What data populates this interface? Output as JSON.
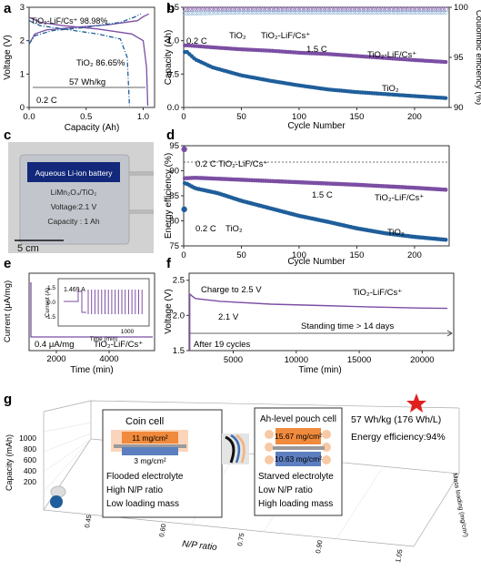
{
  "panel_labels": {
    "a": "a",
    "b": "b",
    "c": "c",
    "d": "d",
    "e": "e",
    "f": "f",
    "g": "g"
  },
  "colors": {
    "purple": "#7b4ea3",
    "blue": "#1f5e9a",
    "light_blue": "#8fb4d6",
    "pouch_orange": "#f08a3c",
    "pouch_blue": "#5d7fc0"
  },
  "chart_data": [
    {
      "id": "a",
      "type": "line",
      "xlabel": "Capacity (Ah)",
      "ylabel": "Voltage (V)",
      "xlim": [
        0,
        1.1
      ],
      "ylim": [
        0,
        3
      ],
      "xticks": [
        "0.0",
        "0.5",
        "1.0"
      ],
      "yticks": [
        "0",
        "1",
        "2",
        "3"
      ],
      "annotations": [
        "TiO₂-LiF/Cs⁺ 98.98%",
        "TiO₂ 86.65%",
        "57 Wh/kg",
        "0.2 C"
      ],
      "series": [
        {
          "name": "TiO₂-LiF/Cs⁺ charge",
          "color": "#7b4ea3",
          "x": [
            0,
            0.05,
            0.15,
            0.4,
            0.7,
            0.95,
            1.0,
            1.05
          ],
          "y": [
            1.9,
            2.2,
            2.32,
            2.4,
            2.48,
            2.6,
            2.72,
            2.8
          ]
        },
        {
          "name": "TiO₂-LiF/Cs⁺ discharge",
          "color": "#7b4ea3",
          "x": [
            0,
            0.1,
            0.3,
            0.6,
            0.9,
            1.0,
            1.03,
            1.04
          ],
          "y": [
            2.7,
            2.55,
            2.45,
            2.35,
            2.2,
            2.0,
            1.2,
            0.05
          ]
        },
        {
          "name": "TiO₂ charge",
          "color": "#1f5e9a",
          "x": [
            0,
            0.05,
            0.2,
            0.5,
            0.8,
            0.92,
            0.98
          ],
          "y": [
            1.9,
            2.15,
            2.3,
            2.4,
            2.55,
            2.7,
            2.8
          ]
        },
        {
          "name": "TiO₂ discharge",
          "color": "#1f5e9a",
          "x": [
            0,
            0.1,
            0.3,
            0.6,
            0.8,
            0.86,
            0.88
          ],
          "y": [
            2.6,
            2.45,
            2.35,
            2.2,
            2.05,
            1.5,
            0.05
          ]
        }
      ]
    },
    {
      "id": "b",
      "type": "scatter",
      "xlabel": "Cycle Number",
      "ylabel": "Capacity (Ah)",
      "y2label": "Coulombic efficiency (%)",
      "xlim": [
        0,
        230
      ],
      "ylim": [
        0,
        1.5
      ],
      "y2lim": [
        90,
        100
      ],
      "xticks": [
        "0",
        "50",
        "100",
        "150",
        "200"
      ],
      "yticks": [
        "0.0",
        "0.5",
        "1.0",
        "1.5"
      ],
      "y2ticks": [
        "90",
        "95",
        "100"
      ],
      "annotations": [
        "0.2 C",
        "TiO₂",
        "TiO₂-LiF/Cs⁺",
        "1.5 C",
        "TiO₂-LiF/Cs⁺",
        "TiO₂"
      ],
      "series": [
        {
          "name": "TiO₂-LiF/Cs⁺ capacity",
          "color": "#7b4ea3",
          "x": [
            3,
            25,
            50,
            75,
            100,
            125,
            150,
            175,
            200,
            228
          ],
          "y": [
            0.93,
            0.9,
            0.87,
            0.85,
            0.82,
            0.8,
            0.77,
            0.74,
            0.71,
            0.68
          ]
        },
        {
          "name": "TiO₂ capacity",
          "color": "#1f5e9a",
          "x": [
            3,
            10,
            25,
            50,
            75,
            100,
            125,
            150,
            175,
            200,
            228
          ],
          "y": [
            0.83,
            0.72,
            0.6,
            0.48,
            0.4,
            0.33,
            0.27,
            0.23,
            0.2,
            0.17,
            0.14
          ]
        },
        {
          "name": "TiO₂-LiF/Cs⁺ CE",
          "color": "#7b4ea3",
          "x": [
            3,
            50,
            100,
            150,
            200,
            228
          ],
          "y": [
            99.8,
            99.8,
            99.8,
            99.8,
            99.8,
            99.8
          ]
        },
        {
          "name": "TiO₂ CE",
          "color": "#8fb4d6",
          "x": [
            3,
            50,
            100,
            150,
            200,
            228
          ],
          "y": [
            99.4,
            99.5,
            99.5,
            99.5,
            99.5,
            99.5
          ]
        }
      ]
    },
    {
      "id": "d",
      "type": "scatter",
      "xlabel": "Cycle Number",
      "ylabel": "Energy efficiency (%)",
      "xlim": [
        0,
        230
      ],
      "ylim": [
        75,
        95
      ],
      "xticks": [
        "0",
        "50",
        "100",
        "150",
        "200"
      ],
      "yticks": [
        "75",
        "80",
        "85",
        "90",
        "95"
      ],
      "annotations": [
        "0.2 C TiO₂-LiF/Cs⁺",
        "1.5 C",
        "TiO₂-LiF/Cs⁺",
        "0.2 C",
        "TiO₂",
        "TiO₂"
      ],
      "series": [
        {
          "name": "TiO₂-LiF/Cs⁺",
          "color": "#7b4ea3",
          "x": [
            2,
            10,
            50,
            100,
            150,
            200,
            228
          ],
          "y": [
            88.5,
            88.6,
            88.2,
            87.7,
            87.2,
            86.6,
            86.2
          ]
        },
        {
          "name": "TiO₂",
          "color": "#1f5e9a",
          "x": [
            2,
            10,
            30,
            50,
            75,
            100,
            125,
            150,
            175,
            200,
            228
          ],
          "y": [
            87.5,
            86.5,
            85.5,
            84,
            82.5,
            81,
            79.8,
            78.5,
            77.5,
            76.8,
            76.2
          ]
        },
        {
          "name": "0.2 C TiO₂-LiF/Cs⁺",
          "color": "#7b4ea3",
          "x": [
            0.5
          ],
          "y": [
            94.3
          ]
        },
        {
          "name": "0.2 C TiO₂",
          "color": "#1f5e9a",
          "x": [
            0.5
          ],
          "y": [
            82.3
          ]
        }
      ]
    },
    {
      "id": "e",
      "type": "line",
      "xlabel": "Time (min)",
      "ylabel": "Current (μA/mg)",
      "xticks": [
        "2000",
        "4000"
      ],
      "annotations": [
        "0.4 μA/mg",
        "TiO₂-LiF/Cs⁺"
      ],
      "inset": {
        "xlabel": "Time (min)",
        "ylabel": "Current (A)",
        "xticks": [
          "1000"
        ],
        "yticks": [
          "1.5",
          "0.0",
          "-1.5"
        ],
        "annotation": "1.469 A"
      }
    },
    {
      "id": "f",
      "type": "line",
      "xlabel": "Time (min)",
      "ylabel": "Voltage (V)",
      "xlim": [
        1500,
        22500
      ],
      "ylim": [
        1.5,
        2.6
      ],
      "xticks": [
        "5000",
        "10000",
        "15000",
        "20000"
      ],
      "yticks": [
        "1.5",
        "2.0",
        "2.5"
      ],
      "annotations": [
        "Charge to 2.5 V",
        "TiO₂-LiF/Cs⁺",
        "2.1 V",
        "Standing time > 14 days",
        "After 19 cycles"
      ],
      "series": [
        {
          "name": "TiO₂-LiF/Cs⁺",
          "color": "#7b4ea3",
          "x": [
            1600,
            1700,
            2000,
            4000,
            8000,
            12000,
            16000,
            20000,
            22000
          ],
          "y": [
            2.3,
            2.28,
            2.24,
            2.2,
            2.16,
            2.14,
            2.12,
            2.105,
            2.1
          ]
        }
      ]
    }
  ],
  "photo_c": {
    "banner": "Aqueous Li-ion battery",
    "line1": "LiMn₂O₄/TiO₂",
    "line2": "Voltage:2.1 V",
    "line3": "Capacity : 1 Ah",
    "scale": "5 cm"
  },
  "panel_g": {
    "ylabel": "Capacity (mAh)",
    "yticks": [
      "1000",
      "800",
      "600",
      "400",
      "200"
    ],
    "xlabel": "N/P ratio",
    "xticks": [
      "0.45",
      "0.60",
      "0.75",
      "0.90",
      "1.05"
    ],
    "zlabel": "Mass loading (mg/cm²)",
    "coin": {
      "title": "Coin cell",
      "top": "11 mg/cm²",
      "bottom": "3 mg/cm²",
      "lines": [
        "Flooded electrolyte",
        "High N/P ratio",
        "Low loading mass"
      ]
    },
    "pouch": {
      "title": "Ah-level pouch cell",
      "top": "15.67 mg/cm²",
      "bottom": "10.63 mg/cm²",
      "lines": [
        "Starved electrolyte",
        "Low N/P ratio",
        "High loading mass"
      ]
    },
    "highlight1": "57 Wh/kg (176 Wh/L)",
    "highlight2": "Energy efficiency:94%"
  }
}
